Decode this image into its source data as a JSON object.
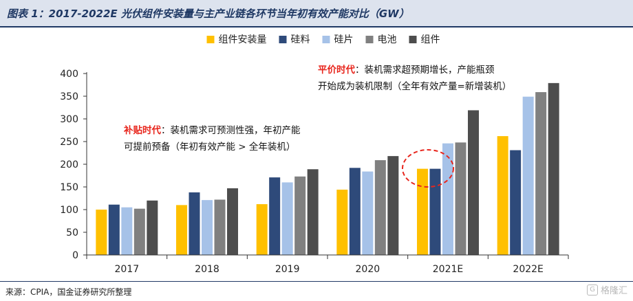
{
  "title": "图表 1：2017-2022E 光伏组件安装量与主产业链各环节当年初有效产能对比（GW）",
  "source": "来源：CPIA，国金证券研究所整理",
  "watermark": "格隆汇",
  "annotations": {
    "subsidy": {
      "highlight": "补贴时代",
      "rest": "：装机需求可预测性强，年初产能",
      "line2": "可提前预备（年初有效产能 > 全年装机）"
    },
    "parity": {
      "highlight": "平价时代",
      "rest": "：装机需求超预期增长，产能瓶颈",
      "line2": "开始成为装机限制（全年有效产量=新增装机）"
    }
  },
  "chart_data": {
    "type": "bar",
    "categories": [
      "2017",
      "2018",
      "2019",
      "2020",
      "2021E",
      "2022E"
    ],
    "series": [
      {
        "name": "组件安装量",
        "color": "#ffc000",
        "values": [
          100,
          110,
          112,
          144,
          190,
          262
        ]
      },
      {
        "name": "硅料",
        "color": "#2e4a7a",
        "values": [
          111,
          138,
          171,
          192,
          190,
          231
        ]
      },
      {
        "name": "硅片",
        "color": "#a6c2e8",
        "values": [
          105,
          121,
          160,
          184,
          246,
          349
        ]
      },
      {
        "name": "电池",
        "color": "#808080",
        "values": [
          102,
          122,
          173,
          209,
          248,
          359
        ]
      },
      {
        "name": "组件",
        "color": "#4d4d4d",
        "values": [
          120,
          147,
          189,
          218,
          319,
          379
        ]
      }
    ],
    "ylim": [
      0,
      400
    ],
    "yticks": [
      0,
      50,
      100,
      150,
      200,
      250,
      300,
      350,
      400
    ],
    "legend": "top-center",
    "grid": false,
    "highlight_marker": "dashed red circle around 2021E 组件安装量 and 硅料 bars"
  }
}
